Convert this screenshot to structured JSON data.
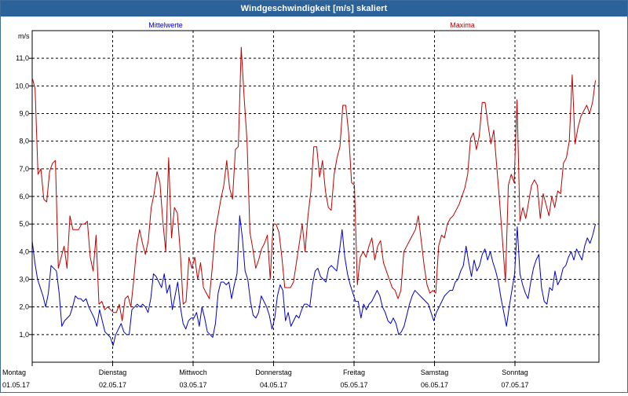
{
  "window": {
    "title": "Windgeschwindigkeit [m/s] skaliert"
  },
  "chart_data": {
    "type": "line",
    "title": "Windgeschwindigkeit [m/s] skaliert",
    "ylabel": "m/s",
    "ylim": [
      0.0,
      12.0
    ],
    "yticks": [
      "1,0",
      "2,0",
      "3,0",
      "4,0",
      "5,0",
      "6,0",
      "7,0",
      "8,0",
      "9,0",
      "10,0",
      "11,0"
    ],
    "x_domain": [
      0,
      7
    ],
    "grid": true,
    "days": [
      {
        "weekday": "Montag",
        "date": "01.05.17"
      },
      {
        "weekday": "Dienstag",
        "date": "02.05.17"
      },
      {
        "weekday": "Mittwoch",
        "date": "03.05.17"
      },
      {
        "weekday": "Donnerstag",
        "date": "04.05.17"
      },
      {
        "weekday": "Freitag",
        "date": "05.05.17"
      },
      {
        "weekday": "Samstag",
        "date": "06.05.17"
      },
      {
        "weekday": "Sonntag",
        "date": "07.05.17"
      }
    ],
    "legend_placement": "top",
    "series": [
      {
        "name": "Mittelwerte",
        "color": "#0000c8",
        "values": [
          4.4,
          3.6,
          3.0,
          2.7,
          2.4,
          2.0,
          2.5,
          3.5,
          3.4,
          3.3,
          2.5,
          1.3,
          1.5,
          1.6,
          1.7,
          2.0,
          2.4,
          2.3,
          2.3,
          2.2,
          2.3,
          2.0,
          1.8,
          1.6,
          1.3,
          1.9,
          1.5,
          1.1,
          1.0,
          0.9,
          0.6,
          1.0,
          1.2,
          1.4,
          1.1,
          1.0,
          1.0,
          1.9,
          2.0,
          2.1,
          2.0,
          2.1,
          2.0,
          1.8,
          2.3,
          3.2,
          3.1,
          2.9,
          2.7,
          3.2,
          2.5,
          2.8,
          1.9,
          2.4,
          2.9,
          2.0,
          1.4,
          1.2,
          1.5,
          1.6,
          1.6,
          1.8,
          1.3,
          2.0,
          1.6,
          1.1,
          1.0,
          0.9,
          1.4,
          2.5,
          2.9,
          2.9,
          2.8,
          2.9,
          2.3,
          2.8,
          3.2,
          5.3,
          4.5,
          3.3,
          3.0,
          2.2,
          1.7,
          1.6,
          1.8,
          2.4,
          2.2,
          2.0,
          1.7,
          1.2,
          1.6,
          2.4,
          2.8,
          2.6,
          1.5,
          1.8,
          1.3,
          1.5,
          1.7,
          1.6,
          1.9,
          2.1,
          2.1,
          2.0,
          2.8,
          3.3,
          3.4,
          3.1,
          3.0,
          2.9,
          3.4,
          3.5,
          3.4,
          3.3,
          4.0,
          4.8,
          3.8,
          3.2,
          2.8,
          2.5,
          2.2,
          2.2,
          1.6,
          2.1,
          1.9,
          2.1,
          2.2,
          2.4,
          2.6,
          2.4,
          2.0,
          1.8,
          1.5,
          1.4,
          1.6,
          1.4,
          1.0,
          1.1,
          1.3,
          1.7,
          2.1,
          2.4,
          2.6,
          2.5,
          2.4,
          2.3,
          2.2,
          2.1,
          1.8,
          1.5,
          1.8,
          2.0,
          2.2,
          2.4,
          2.5,
          2.6,
          2.6,
          2.9,
          3.0,
          3.3,
          3.5,
          4.2,
          3.6,
          3.1,
          3.7,
          3.3,
          3.5,
          3.9,
          4.1,
          3.7,
          4.0,
          3.6,
          3.3,
          2.9,
          2.3,
          1.8,
          1.3,
          2.0,
          2.6,
          3.2,
          4.9,
          3.2,
          2.8,
          2.5,
          2.3,
          2.9,
          3.4,
          3.7,
          3.9,
          2.7,
          2.2,
          2.1,
          2.7,
          2.6,
          3.3,
          2.8,
          3.0,
          3.4,
          3.5,
          3.8,
          4.0,
          3.7,
          4.1,
          3.9,
          3.7,
          4.2,
          4.5,
          4.3,
          4.6,
          5.0
        ]
      },
      {
        "name": "Maxima",
        "color": "#c00000",
        "values": [
          10.3,
          9.9,
          6.8,
          7.0,
          5.9,
          5.8,
          6.9,
          7.2,
          7.3,
          3.4,
          3.8,
          4.2,
          3.4,
          5.3,
          4.8,
          4.8,
          4.8,
          5.0,
          5.0,
          5.1,
          3.8,
          3.3,
          4.6,
          2.1,
          2.2,
          1.9,
          2.0,
          1.9,
          1.8,
          1.8,
          2.1,
          1.5,
          2.3,
          2.4,
          2.0,
          3.0,
          4.2,
          4.8,
          4.3,
          3.9,
          4.4,
          5.6,
          6.1,
          6.9,
          6.5,
          5.1,
          4.0,
          7.4,
          4.5,
          5.6,
          5.4,
          4.0,
          2.1,
          2.2,
          3.8,
          3.4,
          3.8,
          3.0,
          3.6,
          2.7,
          2.5,
          2.3,
          3.4,
          4.7,
          5.3,
          5.9,
          6.4,
          7.3,
          6.3,
          5.9,
          7.7,
          7.8,
          11.4,
          9.6,
          8.0,
          4.7,
          4.1,
          3.4,
          3.7,
          4.1,
          4.3,
          4.6,
          3.0,
          5.0,
          5.0,
          4.7,
          3.8,
          2.7,
          2.7,
          2.7,
          2.9,
          3.6,
          4.3,
          5.0,
          4.0,
          5.3,
          6.2,
          7.8,
          7.8,
          6.7,
          7.3,
          6.2,
          5.6,
          5.5,
          6.8,
          7.4,
          7.8,
          9.3,
          9.3,
          8.3,
          6.5,
          6.4,
          2.8,
          3.8,
          4.0,
          3.8,
          4.2,
          4.5,
          3.7,
          4.2,
          4.4,
          3.6,
          3.3,
          3.0,
          2.7,
          2.6,
          2.3,
          2.6,
          4.0,
          4.2,
          4.4,
          4.6,
          4.8,
          5.3,
          4.4,
          3.5,
          2.8,
          2.5,
          2.6,
          2.5,
          4.2,
          4.6,
          4.5,
          5.0,
          5.2,
          5.3,
          5.5,
          5.7,
          6.0,
          6.3,
          6.8,
          8.1,
          8.3,
          7.7,
          8.2,
          9.4,
          9.4,
          8.6,
          7.9,
          8.4,
          7.1,
          5.8,
          4.4,
          2.9,
          6.4,
          6.8,
          6.5,
          9.5,
          5.1,
          5.6,
          5.2,
          5.8,
          6.4,
          6.6,
          6.4,
          5.2,
          6.1,
          5.7,
          5.3,
          6.0,
          5.6,
          6.2,
          6.1,
          7.2,
          7.4,
          8.0,
          10.4,
          7.9,
          8.5,
          8.9,
          9.1,
          9.3,
          9.0,
          9.4,
          10.2
        ]
      }
    ]
  }
}
